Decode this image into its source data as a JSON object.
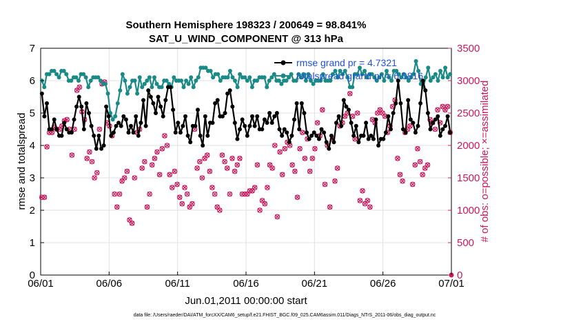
{
  "chart_data": {
    "type": "line",
    "title": "Southern Hemisphere 198323 / 200649 = 98.841%",
    "subtitle": "SAT_U_WIND_COMPONENT @ 313 hPa",
    "xlabel": "Jun.01,2011 00:00:00 start",
    "ylabel": "rmse and totalspread",
    "ylabel_right": "# of obs: o=possible; ×=assimilated",
    "x_ticks": [
      "06/01",
      "06/06",
      "06/11",
      "06/16",
      "06/21",
      "06/26",
      "07/01"
    ],
    "x_range_days": [
      0,
      30
    ],
    "ylim": [
      0,
      7
    ],
    "ylim_right": [
      0,
      3500
    ],
    "y_ticks": [
      "0",
      "1",
      "2",
      "3",
      "4",
      "5",
      "6",
      "7"
    ],
    "y_ticks_right": [
      "0",
      "500",
      "1000",
      "1500",
      "2000",
      "2500",
      "3000",
      "3500"
    ],
    "grid": true,
    "legend_position": "top-right",
    "footer": "data file: /Users/raeder/DAI/ATM_forcXX/CAM6_setup/f.e21.FHIST_BGC.f09_025.CAM6assim.011/Diags_NTrS_2011-06/obs_diag_output.nc",
    "colors": {
      "rmse": "#000000",
      "spread": "#1a8a87",
      "obs": "#d0175c",
      "legend_text": "#1f4fe0",
      "grid": "#e0e0e0"
    },
    "series": [
      {
        "name": "rmse grand pr = 4.7321",
        "axis": "left",
        "values": [
          5.6,
          4.9,
          5.3,
          4.5,
          4.5,
          4.8,
          4.5,
          4.3,
          4.3,
          4.7,
          4.5,
          4.4,
          4.4,
          4.8,
          5.2,
          5.5,
          5.2,
          4.5,
          5.3,
          5.0,
          4.6,
          4.3,
          3.9,
          4.3,
          3.9,
          4.0,
          5.2,
          4.9,
          4.3,
          4.4,
          4.6,
          4.7,
          4.6,
          4.9,
          4.8,
          4.4,
          4.6,
          4.4,
          4.9,
          4.3,
          4.7,
          5.4,
          4.6,
          5.7,
          5.5,
          5.3,
          5.0,
          5.5,
          5.2,
          4.9,
          5.4,
          5.8,
          5.8,
          5.1,
          4.4,
          4.7,
          4.4,
          4.6,
          4.9,
          4.3,
          4.1,
          4.6,
          4.6,
          5.1,
          4.3,
          4.0,
          4.9,
          4.3,
          4.7,
          4.7,
          5.3,
          5.4,
          4.9,
          4.9,
          5.0,
          5.6,
          5.7,
          5.2,
          4.7,
          4.2,
          4.5,
          4.8,
          4.6,
          4.3,
          4.6,
          4.9,
          4.6,
          4.9,
          4.5,
          4.5,
          4.8,
          4.7,
          5.0,
          4.7,
          4.9,
          5.0,
          4.5,
          4.3,
          4.5,
          4.4,
          4.1,
          4.3,
          4.8,
          5.3,
          4.5,
          5.3,
          5.0,
          4.4,
          4.2,
          4.3,
          4.4,
          4.3,
          4.2,
          4.5,
          4.4,
          4.1,
          3.9,
          4.3,
          4.1,
          4.7,
          4.9,
          4.6,
          5.4,
          5.2,
          5.1,
          4.7,
          4.3,
          4.6,
          4.1,
          4.3,
          4.3,
          4.7,
          4.2,
          4.3,
          4.2,
          4.8,
          4.0,
          4.2,
          4.2,
          4.4,
          4.9,
          4.5,
          5.0,
          5.3,
          6.0,
          5.3,
          4.5,
          4.4,
          5.4,
          4.8,
          4.7,
          4.4,
          4.6,
          5.3,
          6.0,
          5.7,
          5.0,
          4.5,
          4.7,
          4.8,
          4.9,
          4.3,
          4.5,
          4.6,
          4.9,
          4.4
        ]
      },
      {
        "name": "totalspread grand pr = 6.0816",
        "axis": "left",
        "values": [
          6.0,
          5.8,
          6.2,
          6.2,
          6.3,
          6.3,
          6.2,
          6.1,
          6.3,
          6.3,
          6.2,
          6.0,
          6.0,
          6.1,
          6.1,
          6.0,
          6.2,
          6.2,
          6.1,
          5.8,
          6.0,
          6.1,
          6.1,
          6.1,
          6.0,
          5.9,
          5.9,
          5.6,
          5.0,
          4.8,
          4.9,
          5.3,
          5.7,
          6.2,
          6.0,
          5.6,
          5.8,
          6.0,
          6.0,
          5.6,
          6.1,
          5.8,
          5.9,
          6.0,
          6.1,
          5.8,
          6.1,
          5.9,
          5.8,
          5.8,
          6.0,
          6.0,
          5.9,
          5.8,
          6.1,
          6.0,
          6.0,
          6.0,
          5.8,
          6.0,
          5.9,
          6.1,
          5.8,
          6.0,
          6.1,
          6.4,
          6.4,
          6.4,
          6.3,
          6.3,
          6.1,
          6.2,
          6.2,
          6.0,
          6.1,
          6.1,
          6.1,
          6.3,
          6.1,
          6.0,
          5.8,
          6.2,
          6.1,
          6.1,
          6.0,
          6.1,
          5.8,
          6.0,
          6.0,
          6.1,
          6.1,
          6.1,
          5.8,
          6.0,
          6.1,
          6.2,
          6.0,
          6.0,
          5.9,
          6.0,
          6.0,
          6.1,
          6.2,
          6.0,
          6.0,
          6.2,
          6.1,
          6.2,
          6.0,
          6.2,
          6.0,
          5.9,
          6.0,
          6.0,
          6.0,
          6.2,
          6.0,
          6.0,
          6.0,
          6.2,
          6.3,
          6.1,
          6.3,
          6.2,
          6.3,
          6.1,
          5.8,
          5.8,
          6.2,
          6.2,
          6.4,
          6.2,
          6.3,
          6.1,
          6.2,
          6.2,
          6.1,
          6.0,
          6.1,
          6.2,
          6.0,
          6.3,
          6.1,
          6.0,
          6.3,
          6.3,
          6.2,
          6.1,
          6.2,
          6.1,
          6.0,
          6.1,
          6.2,
          6.6,
          6.3,
          5.9,
          5.8,
          6.1,
          6.4,
          6.0,
          6.1,
          6.2,
          6.0,
          6.3,
          6.1,
          6.4,
          6.1,
          6.2
        ]
      },
      {
        "name": "# of obs",
        "axis": "right",
        "values": [
          1200,
          1200,
          1980,
          2200,
          2200,
          2280,
          2250,
          2250,
          2300,
          2380,
          2400,
          2250,
          1850,
          2250,
          2850,
          2900,
          2520,
          2400,
          1800,
          1900,
          1750,
          1500,
          1580,
          2250,
          2950,
          2980,
          2350,
          2300,
          2150,
          1250,
          1050,
          1250,
          1450,
          1500,
          1600,
          850,
          800,
          1500,
          2200,
          2250,
          1650,
          1750,
          1050,
          1250,
          1700,
          1800,
          1900,
          1550,
          1950,
          2150,
          2000,
          1550,
          1350,
          1600,
          1400,
          1200,
          1100,
          1350,
          1250,
          1050,
          1100,
          2250,
          1650,
          1750,
          1500,
          1800,
          1850,
          1600,
          1350,
          1250,
          1050,
          1000,
          1850,
          1750,
          1650,
          1250,
          1800,
          1600,
          1700,
          1800,
          1250,
          1250,
          1250,
          1300,
          1300,
          1350,
          1700,
          1000,
          1150,
          1100,
          1350,
          1700,
          1650,
          2000,
          900,
          1900,
          1550,
          1950,
          2050,
          2000,
          1700,
          1600,
          1200,
          1950,
          2200,
          1800,
          2100,
          1600,
          1800,
          1950,
          2350,
          2150,
          2550,
          1400,
          2000,
          1050,
          2100,
          1450,
          1650,
          2300,
          2350,
          2450,
          2500,
          2800,
          2450,
          2100,
          2500,
          1150,
          1300,
          1100,
          1150,
          1050,
          2400,
          2350,
          2500,
          2550,
          2500,
          2450,
          2200,
          2300,
          2600,
          2700,
          1800,
          1550,
          1450,
          2200,
          2250,
          2300,
          1400,
          1700,
          1950,
          1750,
          1550,
          1650,
          1700,
          2400,
          2350,
          2250,
          2550,
          2350,
          2600,
          2550,
          2600,
          2200
        ]
      }
    ]
  }
}
